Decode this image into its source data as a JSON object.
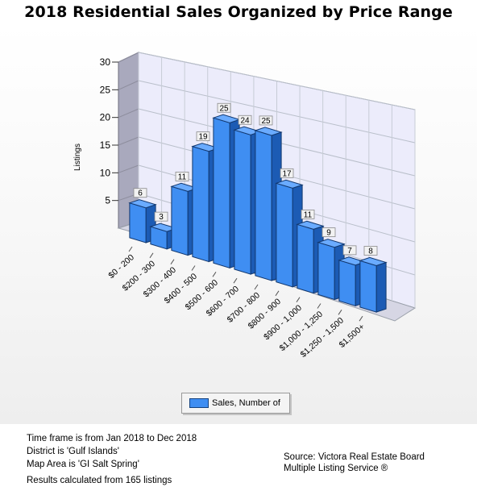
{
  "chart_data": {
    "type": "bar",
    "title": "2018 Residential Sales Organized by Price Range",
    "ylabel": "Listings",
    "xlabel": "",
    "ylim": [
      0,
      30
    ],
    "yticks": [
      5,
      10,
      15,
      20,
      25,
      30
    ],
    "grid": true,
    "legend_position": "bottom",
    "categories": [
      "$0 - 200",
      "$200 - 300",
      "$300 - 400",
      "$400 - 500",
      "$500 - 600",
      "$600 - 700",
      "$700 - 800",
      "$800 - 900",
      "$900 - 1,000",
      "$1,000 - 1,250",
      "$1,250 - 1,500",
      "$1,500+"
    ],
    "series": [
      {
        "name": "Sales, Number of",
        "values": [
          6,
          3,
          11,
          19,
          25,
          24,
          25,
          17,
          11,
          9,
          7,
          8
        ],
        "color": "#3f8ef2"
      }
    ]
  },
  "info": {
    "lines": [
      "Time frame is from Jan 2018 to Dec 2018",
      "District is 'Gulf Islands'",
      "Map Area is 'GI Salt Spring'"
    ],
    "results": "Results calculated from 165 listings"
  },
  "source": {
    "line1": "Source: Victora Real Estate Board",
    "line2": "Multiple Listing Service ®"
  }
}
